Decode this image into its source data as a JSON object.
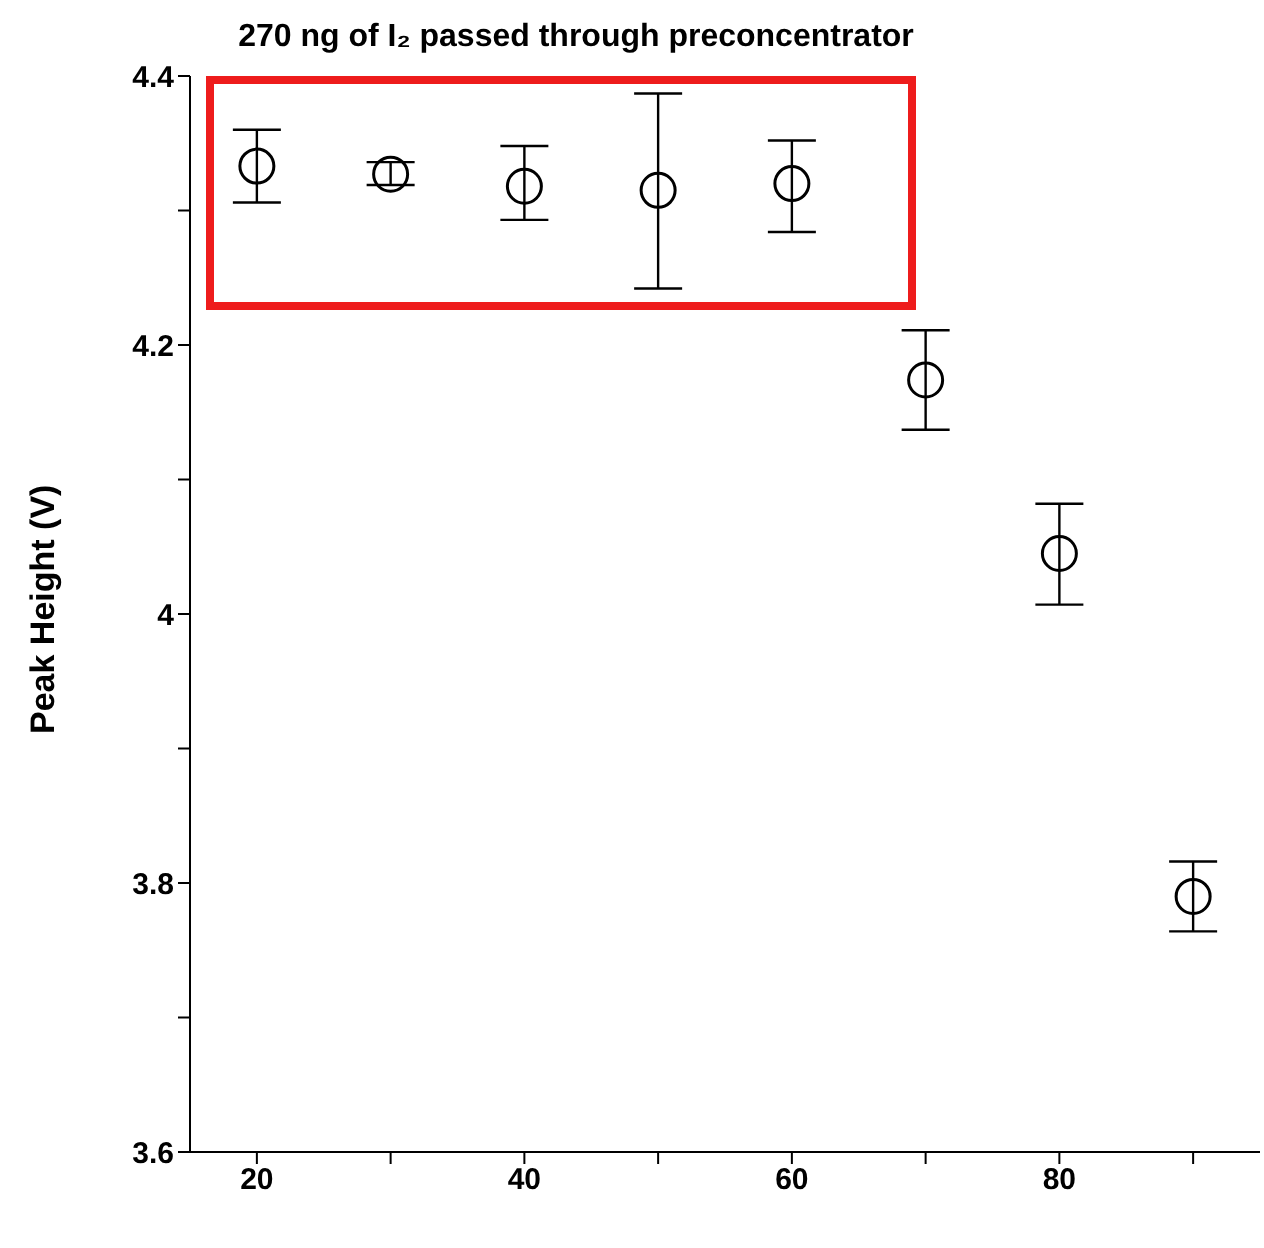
{
  "chart_data": {
    "type": "scatter",
    "title": "270 ng of I₂ passed through preconcentrator",
    "ylabel": "Peak Height (V)",
    "x": [
      20,
      30,
      40,
      50,
      60,
      70,
      80,
      90
    ],
    "values": [
      4.333,
      4.327,
      4.318,
      4.315,
      4.32,
      4.174,
      4.045,
      3.79
    ],
    "errors": [
      [
        4.306,
        4.36
      ],
      [
        4.319,
        4.336
      ],
      [
        4.293,
        4.348
      ],
      [
        4.242,
        4.387
      ],
      [
        4.284,
        4.352
      ],
      [
        4.137,
        4.211
      ],
      [
        4.007,
        4.082
      ],
      [
        3.764,
        3.816
      ]
    ],
    "color": "#000000",
    "marker": "circle",
    "xlim": [
      15,
      95
    ],
    "xticks": [
      20,
      {
        "value": 30,
        "label": null
      },
      40,
      {
        "value": 50,
        "label": null
      },
      60,
      {
        "value": 70,
        "label": null
      },
      80,
      {
        "value": 90,
        "label": null
      }
    ],
    "ylim": [
      3.6,
      4.4
    ],
    "yticks": [
      3.6,
      {
        "value": 3.7,
        "label": null
      },
      3.8,
      {
        "value": 3.9,
        "label": null
      },
      4,
      {
        "value": 4.1,
        "label": null
      },
      4.2,
      {
        "value": 4.3,
        "label": null
      },
      4.4
    ]
  }
}
